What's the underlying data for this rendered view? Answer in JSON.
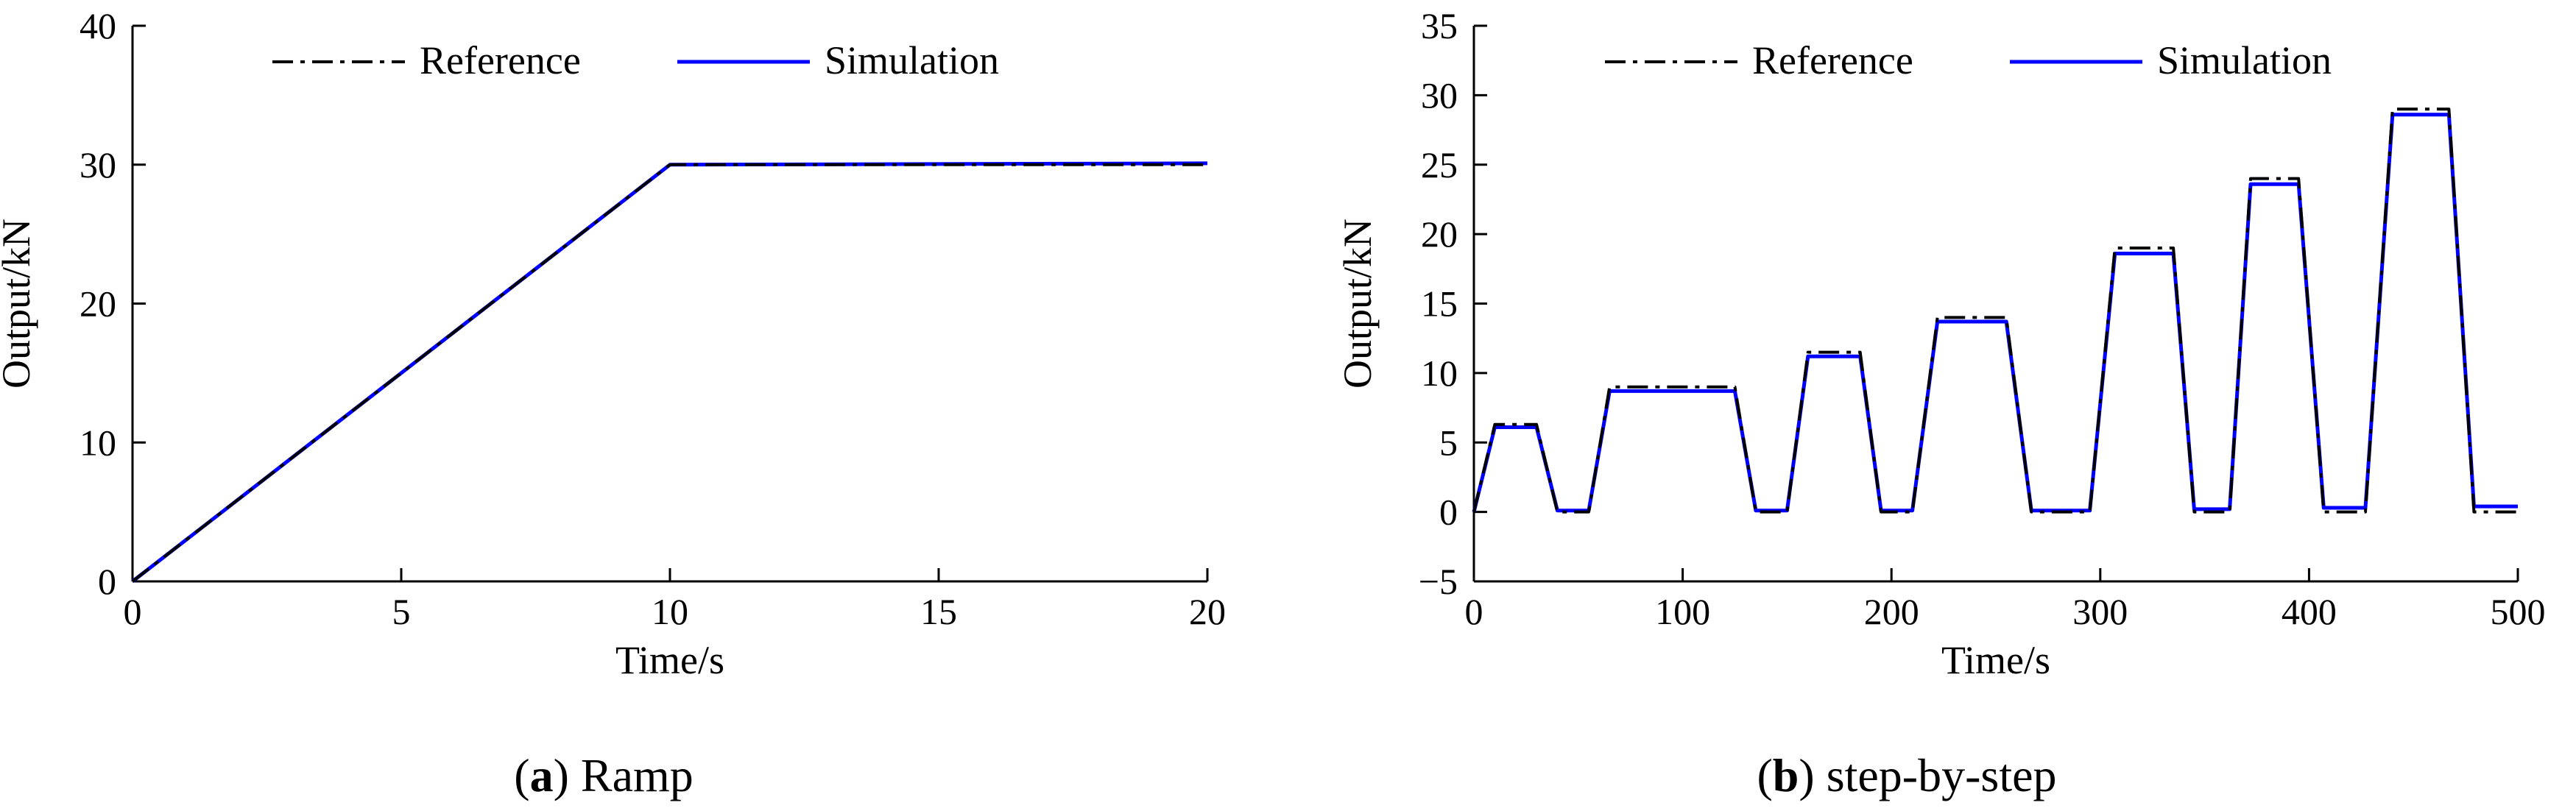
{
  "colors": {
    "reference": "#000000",
    "simulation": "#0000ff",
    "axis": "#000000"
  },
  "captions": [
    {
      "open": "(",
      "letter": "a",
      "close": ")",
      "text": " Ramp"
    },
    {
      "open": "(",
      "letter": "b",
      "close": ")",
      "text": " step-by-step"
    }
  ],
  "chart_data": [
    {
      "type": "line",
      "xlabel": "Time/s",
      "ylabel": "Output/kN",
      "xlim": [
        0,
        20
      ],
      "ylim": [
        0,
        40
      ],
      "xticks": [
        "0",
        "5",
        "10",
        "15",
        "20"
      ],
      "yticks": [
        "0",
        "10",
        "20",
        "30",
        "40"
      ],
      "grid": false,
      "legend_position": "top",
      "series": [
        {
          "name": "Reference",
          "style": "dash-dot",
          "x": [
            0,
            10,
            20
          ],
          "y": [
            0,
            30,
            30
          ]
        },
        {
          "name": "Simulation",
          "style": "solid",
          "x": [
            0,
            10,
            20
          ],
          "y": [
            0,
            30,
            30.1
          ]
        }
      ]
    },
    {
      "type": "line",
      "xlabel": "Time/s",
      "ylabel": "Output/kN",
      "xlim": [
        0,
        500
      ],
      "ylim": [
        -5,
        35
      ],
      "xticks": [
        "0",
        "100",
        "200",
        "300",
        "400",
        "500"
      ],
      "yticks": [
        "−5",
        "0",
        "5",
        "10",
        "15",
        "20",
        "25",
        "30",
        "35"
      ],
      "grid": false,
      "legend_position": "top",
      "series": [
        {
          "name": "Reference",
          "style": "dash-dot",
          "x": [
            0,
            10,
            30,
            40,
            55,
            65,
            125,
            135,
            150,
            160,
            185,
            195,
            210,
            222,
            255,
            267,
            295,
            307,
            335,
            345,
            362,
            372,
            395,
            407,
            427,
            440,
            467,
            479,
            500
          ],
          "y": [
            0,
            6.3,
            6.3,
            0,
            0,
            9.0,
            9.0,
            0,
            0,
            11.5,
            11.5,
            0,
            0,
            14.0,
            14.0,
            0,
            0,
            19.0,
            19.0,
            0,
            0,
            24.0,
            24.0,
            0,
            0,
            29.0,
            29.0,
            0,
            0
          ]
        },
        {
          "name": "Simulation",
          "style": "solid",
          "x": [
            0,
            10,
            30,
            40,
            55,
            65,
            125,
            135,
            150,
            160,
            185,
            195,
            210,
            222,
            255,
            267,
            295,
            307,
            335,
            345,
            362,
            372,
            395,
            407,
            427,
            440,
            467,
            479,
            500
          ],
          "y": [
            0,
            6.1,
            6.1,
            0.1,
            0.1,
            8.7,
            8.7,
            0.1,
            0.1,
            11.2,
            11.2,
            0.1,
            0.1,
            13.7,
            13.7,
            0.1,
            0.1,
            18.6,
            18.6,
            0.2,
            0.2,
            23.6,
            23.6,
            0.3,
            0.3,
            28.6,
            28.6,
            0.4,
            0.4
          ]
        }
      ]
    }
  ]
}
